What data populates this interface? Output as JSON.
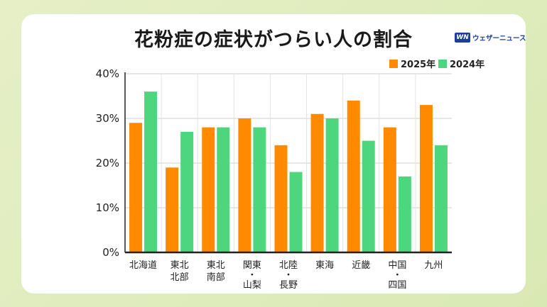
{
  "title": "花粉症の症状がつらい人の割合",
  "brand": {
    "mark": "WN",
    "name": "ウェザーニュース"
  },
  "chart_data": {
    "type": "bar",
    "title": "花粉症の症状がつらい人の割合",
    "categories": [
      "北海道",
      "東北北部",
      "東北南部",
      "関東・山梨",
      "北陸・長野",
      "東海",
      "近畿",
      "中国・四国",
      "九州"
    ],
    "category_lines": [
      [
        "北海道"
      ],
      [
        "東北",
        "北部"
      ],
      [
        "東北",
        "南部"
      ],
      [
        "関東",
        "・",
        "山梨"
      ],
      [
        "北陸",
        "・",
        "長野"
      ],
      [
        "東海"
      ],
      [
        "近畿"
      ],
      [
        "中国",
        "・",
        "四国"
      ],
      [
        "九州"
      ]
    ],
    "series": [
      {
        "name": "2025年",
        "color": "#ff8a00",
        "values": [
          29,
          19,
          28,
          30,
          24,
          31,
          34,
          28,
          33
        ]
      },
      {
        "name": "2024年",
        "color": "#4dd67d",
        "values": [
          36,
          27,
          28,
          28,
          18,
          30,
          25,
          17,
          24
        ]
      }
    ],
    "ylim": [
      0,
      40
    ],
    "yticks": [
      0,
      10,
      20,
      30,
      40
    ],
    "ytick_labels": [
      "0%",
      "10%",
      "20%",
      "30%",
      "40%"
    ],
    "grid": true,
    "legend_position": "top-right"
  }
}
